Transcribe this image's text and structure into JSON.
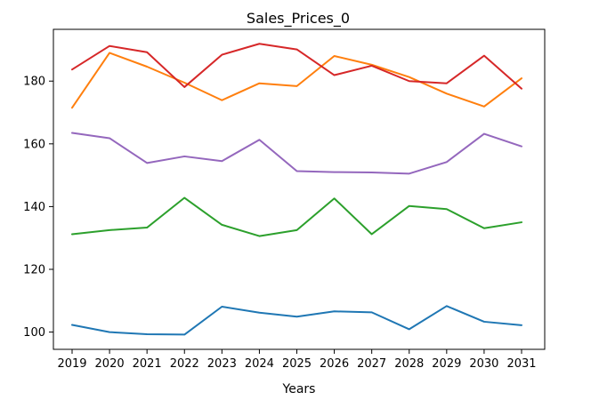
{
  "chart_data": {
    "type": "line",
    "title": "Sales_Prices_0",
    "xlabel": "Years",
    "ylabel": "",
    "x": [
      "2019",
      "2020",
      "2021",
      "2022",
      "2023",
      "2024",
      "2025",
      "2026",
      "2027",
      "2028",
      "2029",
      "2030",
      "2031"
    ],
    "yticks": [
      100,
      120,
      140,
      160,
      180
    ],
    "ylim": [
      94.5,
      196.5
    ],
    "grid": false,
    "legend": "none",
    "series": [
      {
        "color": "#1f77b4",
        "values": [
          102.3,
          100.0,
          99.3,
          99.2,
          108.1,
          106.2,
          104.9,
          106.6,
          106.3,
          100.9,
          108.3,
          103.3,
          102.2
        ]
      },
      {
        "color": "#ff7f0e",
        "values": [
          171.5,
          189.0,
          184.6,
          179.5,
          173.9,
          179.3,
          178.4,
          188.0,
          185.2,
          181.3,
          176.0,
          171.9,
          180.9
        ]
      },
      {
        "color": "#2ca02c",
        "values": [
          131.2,
          132.5,
          133.3,
          142.8,
          134.2,
          130.6,
          132.5,
          142.6,
          131.2,
          140.2,
          139.2,
          133.1,
          135.0
        ]
      },
      {
        "color": "#d62728",
        "values": [
          183.7,
          191.2,
          189.2,
          178.1,
          188.4,
          191.9,
          190.1,
          181.9,
          184.9,
          180.0,
          179.3,
          188.1,
          177.6
        ]
      },
      {
        "color": "#9467bd",
        "values": [
          163.5,
          161.8,
          153.9,
          156.0,
          154.5,
          161.3,
          151.3,
          151.0,
          150.9,
          150.5,
          154.2,
          163.2,
          159.2
        ]
      }
    ]
  }
}
